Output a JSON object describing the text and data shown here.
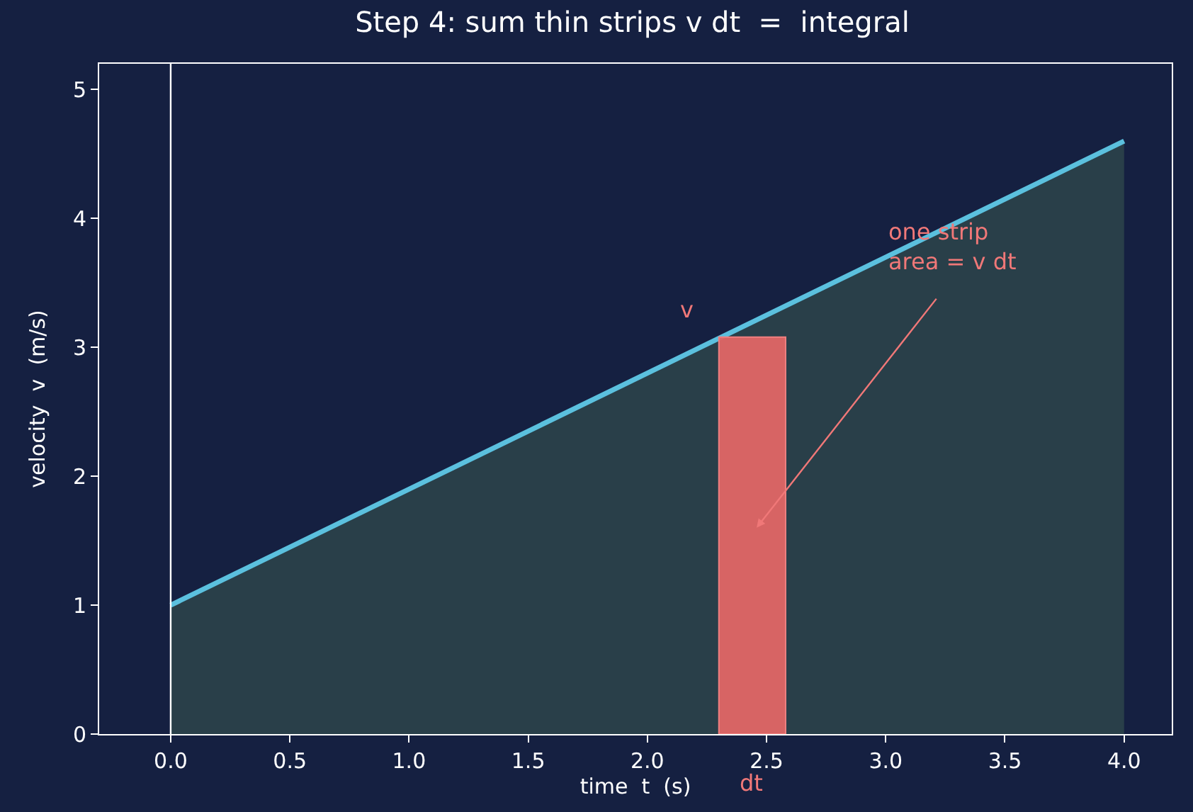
{
  "chart_data": {
    "type": "area",
    "title": "Step 4: sum thin strips v dt  =  integral",
    "xlabel": "time  t  (s)",
    "ylabel": "velocity  v  (m/s)",
    "series": [
      {
        "color": "#5bc0de",
        "x": [
          0,
          4
        ],
        "values": [
          1,
          4.6
        ]
      },
      {
        "type": "bar",
        "color": "#e06666",
        "x": [
          2.44
        ],
        "values": [
          3.08
        ]
      }
    ],
    "ref_lines": [
      {
        "axis": "x",
        "value": 0,
        "color": "#ffffff"
      }
    ],
    "annotations": [
      "v",
      "dt",
      "one strip\narea = v dt"
    ],
    "xlim": [
      -0.3,
      4.2
    ],
    "xticks": [
      {
        "value": 0,
        "label": "0.0"
      },
      {
        "value": 0.5,
        "label": "0.5"
      },
      {
        "value": 1,
        "label": "1.0"
      },
      {
        "value": 1.5,
        "label": "1.5"
      },
      {
        "value": 2,
        "label": "2.0"
      },
      {
        "value": 2.5,
        "label": "2.5"
      },
      {
        "value": 3,
        "label": "3.0"
      },
      {
        "value": 3.5,
        "label": "3.5"
      },
      {
        "value": 4,
        "label": "4.0"
      }
    ],
    "ylim": [
      0,
      5.2
    ],
    "yticks": [
      0,
      1,
      2,
      3,
      4,
      5
    ],
    "grid": false
  }
}
